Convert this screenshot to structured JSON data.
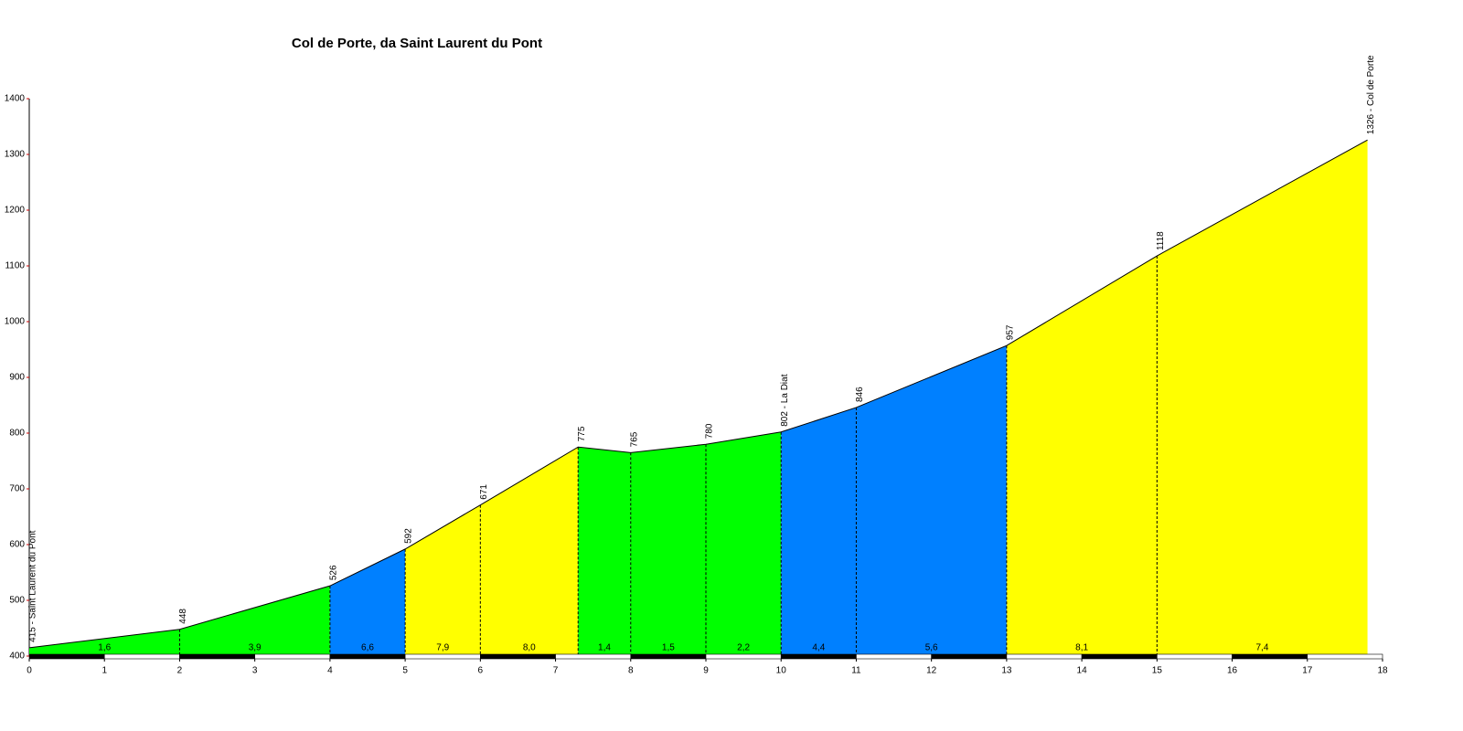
{
  "chart_data": {
    "type": "area",
    "title": "Col de Porte, da Saint Laurent du Pont",
    "x": [
      0,
      2,
      4,
      5,
      6,
      7.3,
      8,
      9,
      10,
      11,
      13,
      15,
      17.8
    ],
    "values": [
      415,
      448,
      526,
      592,
      671,
      775,
      765,
      780,
      802,
      846,
      957,
      1118,
      1326
    ],
    "value_labels": [
      "415 - Saint Laurent du Pont",
      "448",
      "526",
      "592",
      "671",
      "775",
      "765",
      "780",
      "802 - La Diat",
      "846",
      "957",
      "1118",
      "1326 - Col de Porte"
    ],
    "gradients": [
      1.6,
      3.9,
      6.6,
      7.9,
      8.0,
      1.4,
      1.5,
      2.2,
      4.4,
      5.6,
      8.1,
      7.4
    ],
    "gradient_labels": [
      "1,6",
      "3,9",
      "6,6",
      "7,9",
      "8,0",
      "1,4",
      "1,5",
      "2,2",
      "4,4",
      "5,6",
      "8,1",
      "7,4"
    ],
    "segment_colors": [
      "#00ff00",
      "#00ff00",
      "#0080ff",
      "#ffff00",
      "#ffff00",
      "#00ff00",
      "#00ff00",
      "#00ff00",
      "#0080ff",
      "#0080ff",
      "#ffff00",
      "#ffff00"
    ],
    "xlim": [
      0,
      18
    ],
    "xticks": [
      0,
      1,
      2,
      3,
      4,
      5,
      6,
      7,
      8,
      9,
      10,
      11,
      12,
      13,
      14,
      15,
      16,
      17,
      18
    ],
    "ylim": [
      400,
      1400
    ],
    "yticks": [
      400,
      500,
      600,
      700,
      800,
      900,
      1000,
      1100,
      1200,
      1300,
      1400
    ]
  }
}
